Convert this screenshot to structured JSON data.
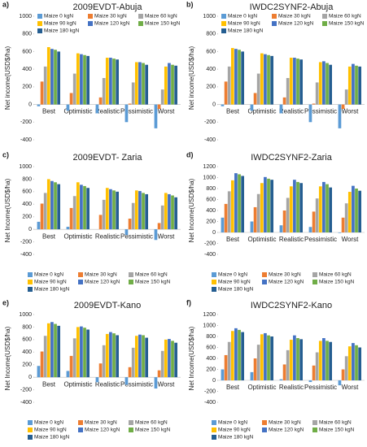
{
  "chart_data": [
    {
      "type": "bar",
      "panel": "a)",
      "title": "2009EVDT-Abuja",
      "y_label": "Net income(USD$/ha)",
      "legend": "top",
      "categories": [
        "Best",
        "Optimistic",
        "Realistic",
        "Pessimistic",
        "Worst"
      ],
      "ylim": [
        -400,
        1000
      ],
      "yticks": [
        -400,
        -200,
        0,
        200,
        400,
        600,
        800,
        1000
      ],
      "series": [
        {
          "name": "Maize 0 kgN",
          "color": "#5b9bd5",
          "values": [
            -20,
            -70,
            -100,
            -200,
            -270
          ]
        },
        {
          "name": "Maize 30 kgN",
          "color": "#ed7d31",
          "values": [
            260,
            130,
            80,
            10,
            -50
          ]
        },
        {
          "name": "Maize 60 kgN",
          "color": "#a5a5a5",
          "values": [
            430,
            350,
            300,
            250,
            170
          ]
        },
        {
          "name": "Maize 90 kgN",
          "color": "#ffc000",
          "values": [
            650,
            580,
            530,
            480,
            430
          ]
        },
        {
          "name": "Maize 120 kgN",
          "color": "#4472c4",
          "values": [
            630,
            570,
            530,
            480,
            470
          ]
        },
        {
          "name": "Maize 150 kgN",
          "color": "#70ad47",
          "values": [
            620,
            560,
            520,
            470,
            450
          ]
        },
        {
          "name": "Maize 180 kgN",
          "color": "#255e91",
          "values": [
            600,
            550,
            510,
            450,
            440
          ]
        }
      ]
    },
    {
      "type": "bar",
      "panel": "b)",
      "title": "IWDC2SYNF2-Abuja",
      "y_label": "Net income(USD$/ha)",
      "legend": "top",
      "categories": [
        "Best",
        "Optimistic",
        "Realistic",
        "Pessimistic",
        "Worst"
      ],
      "ylim": [
        -400,
        1000
      ],
      "yticks": [
        -400,
        -200,
        0,
        200,
        400,
        600,
        800,
        1000
      ],
      "series": [
        {
          "name": "Maize 0 kgN",
          "color": "#5b9bd5",
          "values": [
            -20,
            -70,
            -100,
            -200,
            -270
          ]
        },
        {
          "name": "Maize 30 kgN",
          "color": "#ed7d31",
          "values": [
            260,
            130,
            80,
            10,
            -50
          ]
        },
        {
          "name": "Maize 60 kgN",
          "color": "#a5a5a5",
          "values": [
            430,
            350,
            300,
            250,
            170
          ]
        },
        {
          "name": "Maize 90 kgN",
          "color": "#ffc000",
          "values": [
            640,
            580,
            530,
            480,
            430
          ]
        },
        {
          "name": "Maize 120 kgN",
          "color": "#4472c4",
          "values": [
            630,
            570,
            530,
            490,
            460
          ]
        },
        {
          "name": "Maize 150 kgN",
          "color": "#70ad47",
          "values": [
            620,
            560,
            520,
            470,
            440
          ]
        },
        {
          "name": "Maize 180 kgN",
          "color": "#255e91",
          "values": [
            600,
            550,
            510,
            450,
            430
          ]
        }
      ]
    },
    {
      "type": "bar",
      "panel": "c)",
      "title": "2009EVDT- Zaria",
      "y_label": "Net Income(USD$/ha)",
      "legend": "bottom",
      "categories": [
        "Best",
        "Optimistic",
        "Realistic",
        "Pessimistic",
        "Worst"
      ],
      "ylim": [
        -400,
        1000
      ],
      "yticks": [
        -400,
        -200,
        0,
        200,
        400,
        600,
        800,
        1000
      ],
      "series": [
        {
          "name": "Maize 0 kgN",
          "color": "#5b9bd5",
          "values": [
            120,
            40,
            0,
            -90,
            -170
          ]
        },
        {
          "name": "Maize 30 kgN",
          "color": "#ed7d31",
          "values": [
            410,
            340,
            230,
            170,
            100
          ]
        },
        {
          "name": "Maize 60 kgN",
          "color": "#a5a5a5",
          "values": [
            580,
            530,
            470,
            420,
            380
          ]
        },
        {
          "name": "Maize 90 kgN",
          "color": "#ffc000",
          "values": [
            800,
            750,
            660,
            620,
            580
          ]
        },
        {
          "name": "Maize 120 kgN",
          "color": "#4472c4",
          "values": [
            770,
            710,
            640,
            610,
            560
          ]
        },
        {
          "name": "Maize 150 kgN",
          "color": "#70ad47",
          "values": [
            750,
            690,
            620,
            580,
            540
          ]
        },
        {
          "name": "Maize 180 kgN",
          "color": "#255e91",
          "values": [
            720,
            660,
            600,
            560,
            510
          ]
        }
      ]
    },
    {
      "type": "bar",
      "panel": "d)",
      "title": "IWDC2SYNF2-Zaria",
      "y_label": "Net Income(USD$/ha)",
      "legend": "bottom",
      "categories": [
        "Best",
        "Optimistic",
        "Realistic",
        "Pessimistic",
        "Worst"
      ],
      "ylim": [
        -400,
        1200
      ],
      "yticks": [
        -400,
        -200,
        0,
        200,
        400,
        600,
        800,
        1000,
        1200
      ],
      "series": [
        {
          "name": "Maize 0 kgN",
          "color": "#5b9bd5",
          "values": [
            270,
            200,
            130,
            100,
            -10
          ]
        },
        {
          "name": "Maize 30 kgN",
          "color": "#ed7d31",
          "values": [
            520,
            460,
            400,
            380,
            270
          ]
        },
        {
          "name": "Maize 60 kgN",
          "color": "#a5a5a5",
          "values": [
            750,
            700,
            630,
            620,
            530
          ]
        },
        {
          "name": "Maize 90 kgN",
          "color": "#ffc000",
          "values": [
            950,
            900,
            840,
            840,
            740
          ]
        },
        {
          "name": "Maize 120 kgN",
          "color": "#4472c4",
          "values": [
            1080,
            1010,
            960,
            920,
            850
          ]
        },
        {
          "name": "Maize 150 kgN",
          "color": "#70ad47",
          "values": [
            1060,
            980,
            920,
            880,
            800
          ]
        },
        {
          "name": "Maize 180 kgN",
          "color": "#255e91",
          "values": [
            1030,
            960,
            900,
            820,
            760
          ]
        }
      ]
    },
    {
      "type": "bar",
      "panel": "e)",
      "title": "2009EVDT-Kano",
      "y_label": "Net Income(USD$/ha)",
      "legend": "bottom",
      "categories": [
        "Best",
        "Optimistic",
        "Realistic",
        "Pessimistic",
        "Worst"
      ],
      "ylim": [
        -400,
        1000
      ],
      "yticks": [
        -400,
        -200,
        0,
        200,
        400,
        600,
        800,
        1000
      ],
      "series": [
        {
          "name": "Maize 0 kgN",
          "color": "#5b9bd5",
          "values": [
            180,
            100,
            -80,
            -120,
            -180
          ]
        },
        {
          "name": "Maize 30 kgN",
          "color": "#ed7d31",
          "values": [
            410,
            340,
            220,
            160,
            110
          ]
        },
        {
          "name": "Maize 60 kgN",
          "color": "#a5a5a5",
          "values": [
            660,
            620,
            510,
            470,
            420
          ]
        },
        {
          "name": "Maize 90 kgN",
          "color": "#ffc000",
          "values": [
            860,
            800,
            690,
            660,
            600
          ]
        },
        {
          "name": "Maize 120 kgN",
          "color": "#4472c4",
          "values": [
            880,
            810,
            720,
            680,
            610
          ]
        },
        {
          "name": "Maize 150 kgN",
          "color": "#70ad47",
          "values": [
            850,
            790,
            700,
            670,
            580
          ]
        },
        {
          "name": "Maize 180 kgN",
          "color": "#255e91",
          "values": [
            820,
            760,
            670,
            630,
            550
          ]
        }
      ]
    },
    {
      "type": "bar",
      "panel": "f)",
      "title": "IWDC2SYNF2-Kano",
      "y_label": "Net Income(USD$/ha)",
      "legend": "bottom",
      "categories": [
        "Best",
        "Optimistic",
        "Realistic",
        "Pessimistic",
        "Worst"
      ],
      "ylim": [
        -400,
        1200
      ],
      "yticks": [
        -400,
        -200,
        0,
        200,
        400,
        600,
        800,
        1000,
        1200
      ],
      "series": [
        {
          "name": "Maize 0 kgN",
          "color": "#5b9bd5",
          "values": [
            200,
            150,
            20,
            -30,
            -90
          ]
        },
        {
          "name": "Maize 30 kgN",
          "color": "#ed7d31",
          "values": [
            460,
            400,
            290,
            270,
            200
          ]
        },
        {
          "name": "Maize 60 kgN",
          "color": "#a5a5a5",
          "values": [
            700,
            650,
            550,
            510,
            440
          ]
        },
        {
          "name": "Maize 90 kgN",
          "color": "#ffc000",
          "values": [
            900,
            840,
            740,
            720,
            620
          ]
        },
        {
          "name": "Maize 120 kgN",
          "color": "#4472c4",
          "values": [
            950,
            860,
            820,
            770,
            680
          ]
        },
        {
          "name": "Maize 150 kgN",
          "color": "#70ad47",
          "values": [
            920,
            820,
            770,
            720,
            640
          ]
        },
        {
          "name": "Maize 180 kgN",
          "color": "#255e91",
          "values": [
            880,
            800,
            750,
            700,
            600
          ]
        }
      ]
    }
  ]
}
